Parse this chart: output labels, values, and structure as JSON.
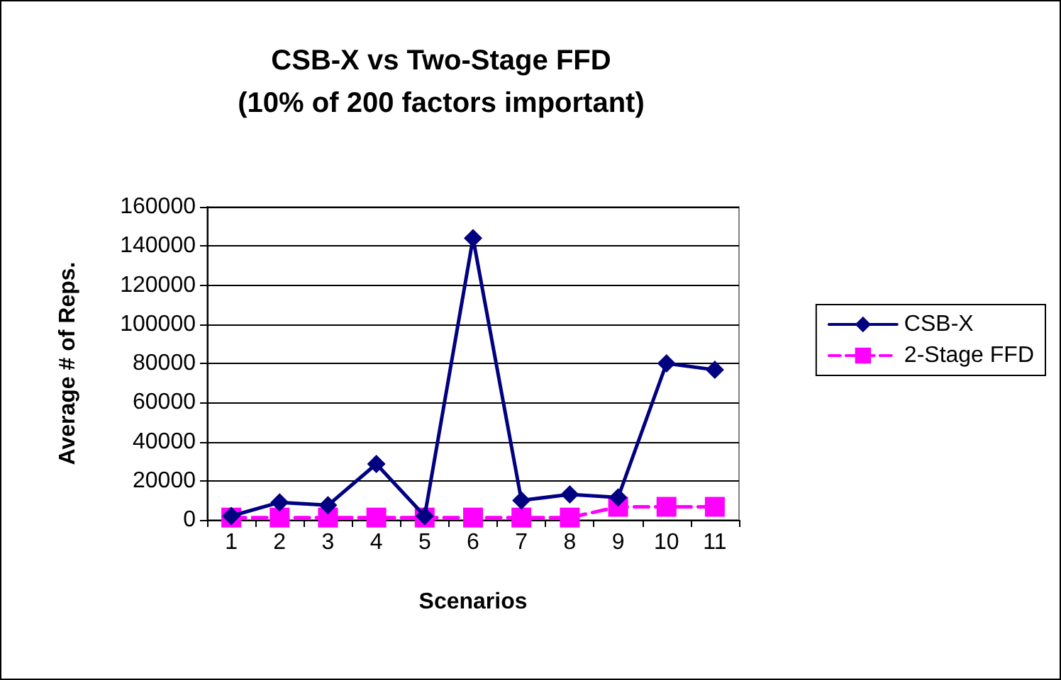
{
  "chart_data": {
    "type": "line",
    "title": "CSB-X vs Two-Stage FFD\n(10% of 200 factors important)",
    "xlabel": "Scenarios",
    "ylabel": "Average # of Reps.",
    "categories": [
      "1",
      "2",
      "3",
      "4",
      "5",
      "6",
      "7",
      "8",
      "9",
      "10",
      "11"
    ],
    "series": [
      {
        "name": "CSB-X",
        "color": "#000080",
        "marker": "diamond",
        "line_style": "solid",
        "values": [
          2000,
          9000,
          7500,
          28600,
          2000,
          144000,
          10000,
          13000,
          11500,
          80000,
          76700
        ]
      },
      {
        "name": "2-Stage FFD",
        "color": "#ff00ff",
        "marker": "square",
        "line_style": "dashed",
        "values": [
          1200,
          1200,
          1200,
          1200,
          1200,
          1200,
          1200,
          1200,
          6700,
          6700,
          6700
        ]
      }
    ],
    "ylim": [
      0,
      160000
    ],
    "yticks": [
      0,
      20000,
      40000,
      60000,
      80000,
      100000,
      120000,
      140000,
      160000
    ],
    "grid": "y",
    "legend": "right"
  }
}
